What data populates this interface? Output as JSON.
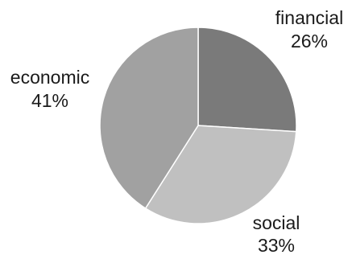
{
  "chart_data": {
    "type": "pie",
    "title": "",
    "slices": [
      {
        "label": "financial",
        "value": 26,
        "value_label": "26%",
        "color": "#7a7a7a"
      },
      {
        "label": "social",
        "value": 33,
        "value_label": "33%",
        "color": "#c0c0c0"
      },
      {
        "label": "economic",
        "value": 41,
        "value_label": "41%",
        "color": "#a1a1a1"
      }
    ],
    "start_angle": "12 o'clock",
    "direction": "clockwise",
    "legend": "none"
  }
}
